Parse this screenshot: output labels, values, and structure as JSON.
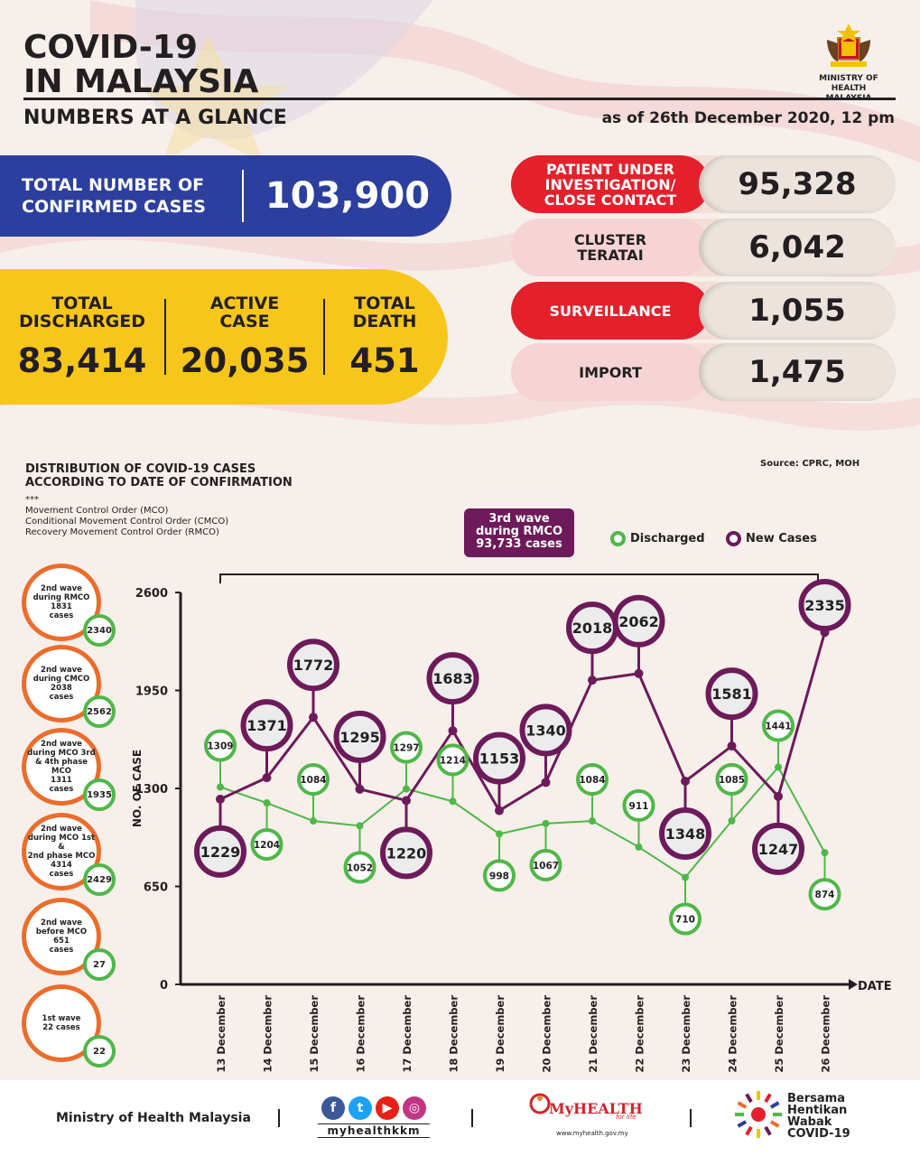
{
  "header": {
    "title_line1": "COVID-19",
    "title_line2": "IN MALAYSIA",
    "subtitle": "NUMBERS AT A GLANCE",
    "as_of": "as of 26th December 2020, 12 pm",
    "ministry_line1": "MINISTRY OF HEALTH",
    "ministry_line2": "MALAYSIA"
  },
  "totals": {
    "confirmed_label_1": "TOTAL NUMBER OF",
    "confirmed_label_2": "CONFIRMED CASES",
    "confirmed_value": "103,900",
    "discharged_label_1": "TOTAL",
    "discharged_label_2": "DISCHARGED",
    "discharged_value": "83,414",
    "active_label_1": "ACTIVE",
    "active_label_2": "CASE",
    "active_value": "20,035",
    "death_label_1": "TOTAL",
    "death_label_2": "DEATH",
    "death_value": "451"
  },
  "categories": [
    {
      "label_1": "PATIENT UNDER",
      "label_2": "INVESTIGATION/",
      "label_3": "CLOSE CONTACT",
      "value": "95,328",
      "style": "red"
    },
    {
      "label_1": "CLUSTER",
      "label_2": "TERATAI",
      "label_3": "",
      "value": "6,042",
      "style": "pink"
    },
    {
      "label_1": "SURVEILLANCE",
      "label_2": "",
      "label_3": "",
      "value": "1,055",
      "style": "red"
    },
    {
      "label_1": "IMPORT",
      "label_2": "",
      "label_3": "",
      "value": "1,475",
      "style": "pink"
    }
  ],
  "chart_section": {
    "title_1": "DISTRIBUTION OF COVID-19 CASES",
    "title_2": "ACCORDING TO DATE OF CONFIRMATION",
    "stars": "***",
    "note_1": "Movement Control Order (MCO)",
    "note_2": "Conditional Movement Control Order (CMCO)",
    "note_3": "Recovery Movement Control Order (RMCO)",
    "source": "Source: CPRC, MOH",
    "third_wave_1": "3rd wave",
    "third_wave_2": "during RMCO",
    "third_wave_3": "93,733 cases"
  },
  "waves": [
    {
      "l1": "2nd wave",
      "l2": "during RMCO",
      "l3": "1831",
      "l4": " cases",
      "l5": "",
      "badge": "2340"
    },
    {
      "l1": "2nd wave",
      "l2": "during CMCO",
      "l3": "2038",
      "l4": " cases",
      "l5": "",
      "badge": "2562"
    },
    {
      "l1": "2nd wave",
      "l2": "during MCO 3rd",
      "l3": "& 4th phase MCO",
      "l4": "1311",
      "l5": " cases",
      "badge": "1935"
    },
    {
      "l1": "2nd wave",
      "l2": "during MCO 1st &",
      "l3": "2nd phase MCO",
      "l4": "4314",
      "l5": " cases",
      "badge": "2429"
    },
    {
      "l1": "2nd wave",
      "l2": "before MCO",
      "l3": "651",
      "l4": " cases",
      "l5": "",
      "badge": "27"
    },
    {
      "l1": "1st wave",
      "l2": "22 cases",
      "l3": "",
      "l4": "",
      "l5": "",
      "badge": "22"
    }
  ],
  "chart_data": {
    "type": "line",
    "x": [
      "13 December",
      "14 December",
      "15 December",
      "16 December",
      "17 December",
      "18 December",
      "19 December",
      "20 December",
      "21 December",
      "22 December",
      "23 December",
      "24 December",
      "25 December",
      "26 December"
    ],
    "series": [
      {
        "name": "Discharged",
        "color": "#4fb748",
        "values": [
          1309,
          1204,
          1084,
          1052,
          1297,
          1214,
          998,
          1067,
          1084,
          911,
          710,
          1085,
          1441,
          874
        ]
      },
      {
        "name": "New Cases",
        "color": "#6d1a5a",
        "values": [
          1229,
          1371,
          1772,
          1295,
          1220,
          1683,
          1153,
          1340,
          2018,
          2062,
          1348,
          1581,
          1247,
          2335
        ]
      }
    ],
    "ylabel": "NO. OF CASE",
    "xlabel": "DATE",
    "ylim": [
      0,
      2600
    ],
    "yticks": [
      0,
      650,
      1300,
      1950,
      2600
    ],
    "grid": false,
    "legend": "top-right"
  },
  "footer": {
    "ministry": "Ministry of Health Malaysia",
    "handle": "myhealthkkm",
    "myhealth": "MyHEALTH",
    "myhealth_tag": "for life",
    "myhealth_url": "www.myhealth.gov.my",
    "bersama_1": "Bersama",
    "bersama_2": "Hentikan",
    "bersama_3": "Wabak",
    "bersama_4": "COVID-19"
  }
}
